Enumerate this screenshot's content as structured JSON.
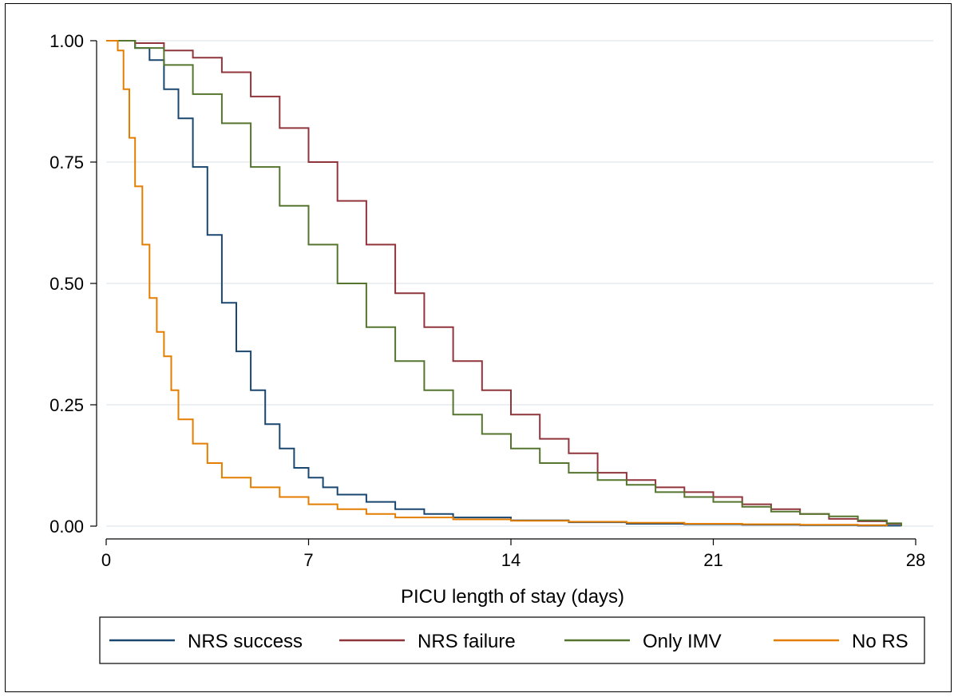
{
  "chart_data": {
    "type": "line",
    "step": true,
    "title": "",
    "xlabel": "PICU length of stay (days)",
    "ylabel": "",
    "xlim": [
      0,
      28
    ],
    "ylim": [
      0,
      1
    ],
    "xticks": [
      0,
      7,
      14,
      21,
      28
    ],
    "yticks": [
      0.0,
      0.25,
      0.5,
      0.75,
      1.0
    ],
    "xtick_labels": [
      "0",
      "7",
      "14",
      "21",
      "28"
    ],
    "ytick_labels": [
      "0.00",
      "0.25",
      "0.50",
      "0.75",
      "1.00"
    ],
    "grid": "horizontal",
    "legend_position": "bottom",
    "series": [
      {
        "name": "NRS success",
        "color": "#1a476f",
        "points": [
          [
            0,
            1.0
          ],
          [
            1,
            0.985
          ],
          [
            1.5,
            0.96
          ],
          [
            2,
            0.9
          ],
          [
            2.5,
            0.84
          ],
          [
            3,
            0.74
          ],
          [
            3.5,
            0.6
          ],
          [
            4,
            0.46
          ],
          [
            4.5,
            0.36
          ],
          [
            5,
            0.28
          ],
          [
            5.5,
            0.21
          ],
          [
            6,
            0.16
          ],
          [
            6.5,
            0.12
          ],
          [
            7,
            0.1
          ],
          [
            7.5,
            0.08
          ],
          [
            8,
            0.065
          ],
          [
            9,
            0.05
          ],
          [
            10,
            0.035
          ],
          [
            11,
            0.025
          ],
          [
            12,
            0.018
          ],
          [
            14,
            0.012
          ],
          [
            16,
            0.008
          ],
          [
            18,
            0.005
          ],
          [
            20,
            0.004
          ],
          [
            22,
            0.003
          ],
          [
            24,
            0.002
          ],
          [
            26,
            0.001
          ],
          [
            27.5,
            0.0
          ]
        ]
      },
      {
        "name": "NRS failure",
        "color": "#90353b",
        "points": [
          [
            0,
            1.0
          ],
          [
            1,
            0.995
          ],
          [
            2,
            0.98
          ],
          [
            3,
            0.965
          ],
          [
            4,
            0.935
          ],
          [
            5,
            0.885
          ],
          [
            6,
            0.82
          ],
          [
            7,
            0.75
          ],
          [
            8,
            0.67
          ],
          [
            9,
            0.58
          ],
          [
            10,
            0.48
          ],
          [
            11,
            0.41
          ],
          [
            12,
            0.34
          ],
          [
            13,
            0.28
          ],
          [
            14,
            0.23
          ],
          [
            15,
            0.18
          ],
          [
            16,
            0.15
          ],
          [
            17,
            0.11
          ],
          [
            18,
            0.095
          ],
          [
            19,
            0.08
          ],
          [
            20,
            0.07
          ],
          [
            21,
            0.06
          ],
          [
            22,
            0.045
          ],
          [
            23,
            0.035
          ],
          [
            24,
            0.025
          ],
          [
            25,
            0.015
          ],
          [
            26,
            0.01
          ],
          [
            27,
            0.005
          ],
          [
            27.5,
            0.0
          ]
        ]
      },
      {
        "name": "Only IMV",
        "color": "#55752f",
        "points": [
          [
            0,
            1.0
          ],
          [
            1,
            0.985
          ],
          [
            2,
            0.95
          ],
          [
            3,
            0.89
          ],
          [
            4,
            0.83
          ],
          [
            5,
            0.74
          ],
          [
            6,
            0.66
          ],
          [
            7,
            0.58
          ],
          [
            8,
            0.5
          ],
          [
            9,
            0.41
          ],
          [
            10,
            0.34
          ],
          [
            11,
            0.28
          ],
          [
            12,
            0.23
          ],
          [
            13,
            0.19
          ],
          [
            14,
            0.16
          ],
          [
            15,
            0.13
          ],
          [
            16,
            0.11
          ],
          [
            17,
            0.095
          ],
          [
            18,
            0.085
          ],
          [
            19,
            0.07
          ],
          [
            20,
            0.06
          ],
          [
            21,
            0.05
          ],
          [
            22,
            0.04
          ],
          [
            23,
            0.03
          ],
          [
            24,
            0.025
          ],
          [
            25,
            0.02
          ],
          [
            26,
            0.012
          ],
          [
            27,
            0.006
          ],
          [
            27.5,
            0.0
          ]
        ]
      },
      {
        "name": "No RS",
        "color": "#e37e00",
        "points": [
          [
            0,
            1.0
          ],
          [
            0.4,
            0.98
          ],
          [
            0.6,
            0.9
          ],
          [
            0.8,
            0.8
          ],
          [
            1,
            0.7
          ],
          [
            1.25,
            0.58
          ],
          [
            1.5,
            0.47
          ],
          [
            1.75,
            0.4
          ],
          [
            2,
            0.35
          ],
          [
            2.25,
            0.28
          ],
          [
            2.5,
            0.22
          ],
          [
            3,
            0.17
          ],
          [
            3.5,
            0.13
          ],
          [
            4,
            0.1
          ],
          [
            5,
            0.08
          ],
          [
            6,
            0.06
          ],
          [
            7,
            0.045
          ],
          [
            8,
            0.035
          ],
          [
            9,
            0.025
          ],
          [
            10,
            0.018
          ],
          [
            12,
            0.014
          ],
          [
            14,
            0.011
          ],
          [
            16,
            0.009
          ],
          [
            18,
            0.007
          ],
          [
            20,
            0.005
          ],
          [
            22,
            0.004
          ],
          [
            24,
            0.003
          ],
          [
            26,
            0.002
          ],
          [
            27,
            0.0
          ]
        ]
      }
    ]
  }
}
